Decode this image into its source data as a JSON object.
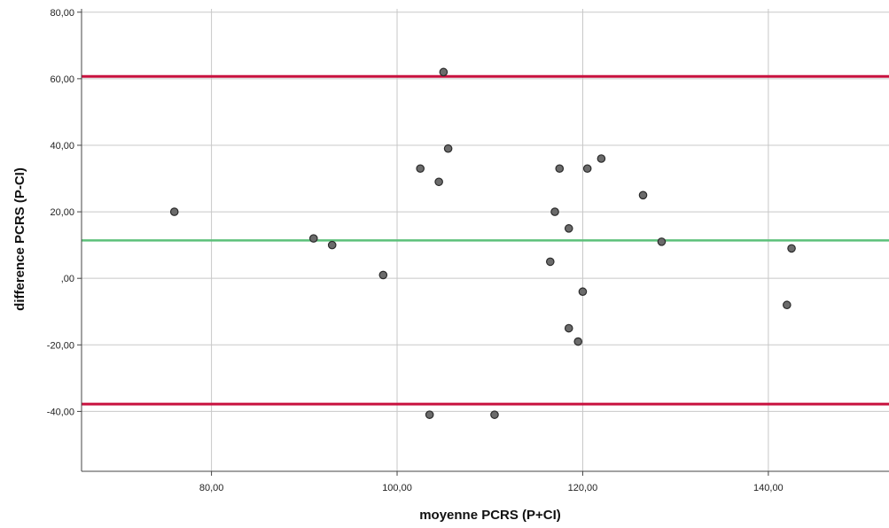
{
  "chart_data": {
    "type": "scatter",
    "title": "",
    "xlabel": "moyenne PCRS (P+CI)",
    "ylabel": "difference PCRS (P-CI)",
    "xlim": [
      66.0,
      153.0
    ],
    "ylim": [
      -58.0,
      81.0
    ],
    "x_ticks": [
      80,
      100,
      120,
      140
    ],
    "x_tick_labels": [
      "80,00",
      "100,00",
      "120,00",
      "140,00"
    ],
    "y_ticks": [
      80,
      60,
      40,
      20,
      0,
      -20,
      -40
    ],
    "y_tick_labels": [
      "80,00",
      "60,00",
      "40,00",
      "20,00",
      ",00",
      "-20,00",
      "-40,00"
    ],
    "grid": true,
    "points": [
      {
        "x": 76.0,
        "y": 20.0
      },
      {
        "x": 91.0,
        "y": 12.0
      },
      {
        "x": 93.0,
        "y": 10.0
      },
      {
        "x": 98.5,
        "y": 1.0
      },
      {
        "x": 102.5,
        "y": 33.0
      },
      {
        "x": 103.5,
        "y": -41.0
      },
      {
        "x": 104.5,
        "y": 29.0
      },
      {
        "x": 105.0,
        "y": 62.0
      },
      {
        "x": 105.5,
        "y": 39.0
      },
      {
        "x": 110.5,
        "y": -41.0
      },
      {
        "x": 116.5,
        "y": 5.0
      },
      {
        "x": 117.0,
        "y": 20.0
      },
      {
        "x": 117.5,
        "y": 33.0
      },
      {
        "x": 118.5,
        "y": 15.0
      },
      {
        "x": 118.5,
        "y": -15.0
      },
      {
        "x": 119.5,
        "y": -19.0
      },
      {
        "x": 120.0,
        "y": -4.0
      },
      {
        "x": 120.5,
        "y": 33.0
      },
      {
        "x": 122.0,
        "y": 36.0
      },
      {
        "x": 126.5,
        "y": 25.0
      },
      {
        "x": 128.5,
        "y": 11.0
      },
      {
        "x": 142.0,
        "y": -8.0
      },
      {
        "x": 142.5,
        "y": 9.0
      }
    ],
    "reference_lines": [
      {
        "role": "upper-limit",
        "y": 60.7,
        "color": "#c8103e"
      },
      {
        "role": "mean",
        "y": 11.4,
        "color": "#5cc07a"
      },
      {
        "role": "lower-limit",
        "y": -37.8,
        "color": "#c8103e"
      }
    ],
    "colors": {
      "point_fill": "#6b6b6b",
      "point_stroke": "#2a2a2a",
      "grid": "#c8c8c8",
      "axis": "#444444"
    }
  }
}
